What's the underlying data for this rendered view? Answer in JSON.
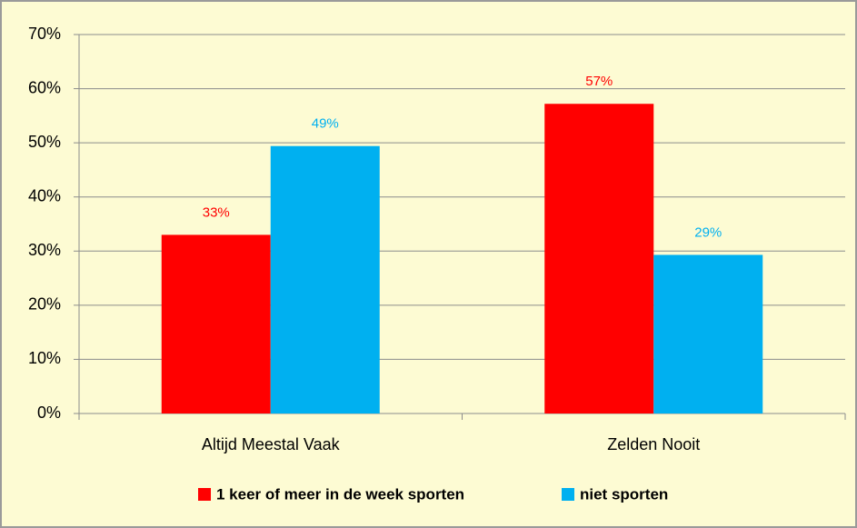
{
  "chart_data": {
    "type": "bar",
    "categories": [
      "Altijd Meestal Vaak",
      "Zelden Nooit"
    ],
    "series": [
      {
        "name": "1 keer of meer in de week sporten",
        "color": "#ff0000",
        "values": [
          33,
          57.2
        ],
        "value_labels": [
          "33%",
          "57%"
        ]
      },
      {
        "name": "niet sporten",
        "color": "#00b0f0",
        "values": [
          49.4,
          29.3
        ],
        "value_labels": [
          "49%",
          "29%"
        ]
      }
    ],
    "ylim": [
      0,
      70
    ],
    "yticks": [
      {
        "value": 0,
        "label": "0%"
      },
      {
        "value": 10,
        "label": "10%"
      },
      {
        "value": 20,
        "label": "20%"
      },
      {
        "value": 30,
        "label": "30%"
      },
      {
        "value": 40,
        "label": "40%"
      },
      {
        "value": 50,
        "label": "50%"
      },
      {
        "value": 60,
        "label": "60%"
      },
      {
        "value": 70,
        "label": "70%"
      }
    ],
    "grid": true,
    "legend": "bottom"
  }
}
